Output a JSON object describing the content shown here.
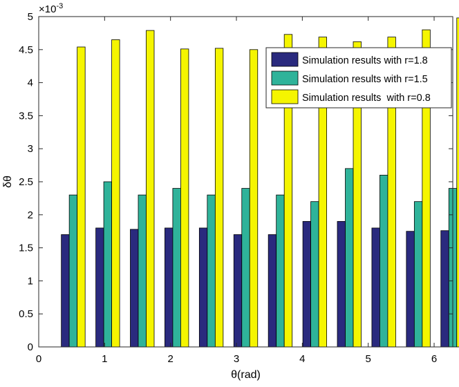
{
  "chart_data": {
    "type": "bar",
    "title": "",
    "xlabel": "θ(rad)",
    "ylabel": "δθ",
    "y_multiplier": "×10",
    "y_exponent": "-3",
    "xlim": [
      0,
      6.283
    ],
    "ylim": [
      0,
      5
    ],
    "xticks": [
      0,
      1,
      2,
      3,
      4,
      5,
      6
    ],
    "yticks": [
      0,
      0.5,
      1,
      1.5,
      2,
      2.5,
      3,
      3.5,
      4,
      4.5,
      5
    ],
    "grid": false,
    "legend_position": "top-right",
    "x": [
      0.5236,
      1.0472,
      1.5708,
      2.0944,
      2.618,
      3.1416,
      3.6652,
      4.1888,
      4.7124,
      5.236,
      5.7596,
      6.2832
    ],
    "series": [
      {
        "name": "Simulation results with r=1.8",
        "color": "#2a2a7e",
        "values": [
          1.7,
          1.8,
          1.78,
          1.8,
          1.8,
          1.7,
          1.7,
          1.9,
          1.9,
          1.8,
          1.75,
          1.76
        ]
      },
      {
        "name": "Simulation results with r=1.5",
        "color": "#2fb39a",
        "values": [
          2.3,
          2.5,
          2.3,
          2.4,
          2.3,
          2.4,
          2.3,
          2.2,
          2.7,
          2.6,
          2.2,
          2.4
        ]
      },
      {
        "name": "Simulation results  with r=0.8",
        "color": "#f5f500",
        "values": [
          4.54,
          4.65,
          4.79,
          4.51,
          4.52,
          4.5,
          4.73,
          4.69,
          4.62,
          4.69,
          4.8,
          4.98
        ]
      }
    ]
  }
}
